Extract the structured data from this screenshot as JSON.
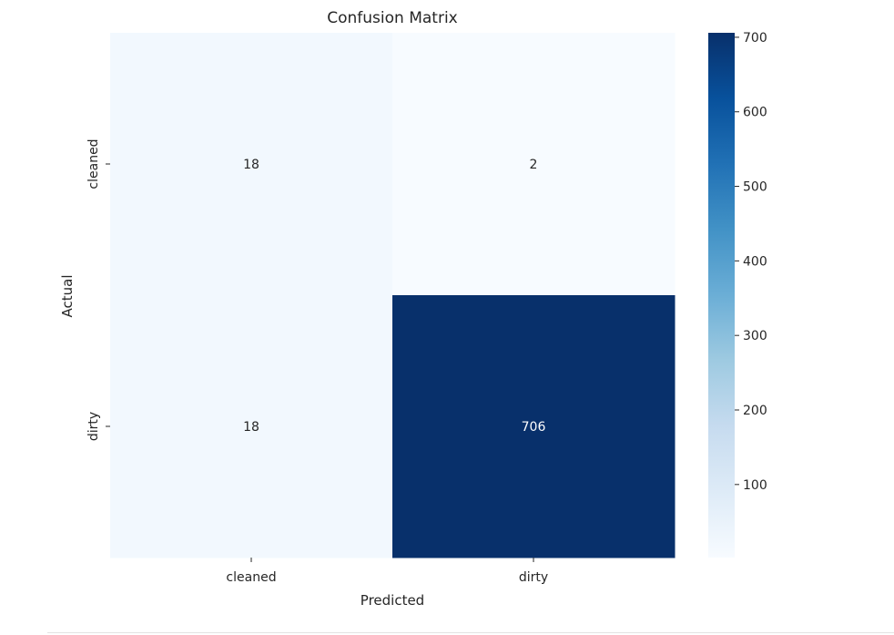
{
  "chart_data": {
    "type": "heatmap",
    "title": "Confusion Matrix",
    "xlabel": "Predicted",
    "ylabel": "Actual",
    "x_categories": [
      "cleaned",
      "dirty"
    ],
    "y_categories": [
      "cleaned",
      "dirty"
    ],
    "values": [
      [
        18,
        2
      ],
      [
        18,
        706
      ]
    ],
    "annotations": [
      [
        "18",
        "2"
      ],
      [
        "18",
        "706"
      ]
    ],
    "colormap": "Blues",
    "colormap_stops": [
      "#f7fbff",
      "#deebf7",
      "#c6dbef",
      "#9ecae1",
      "#6baed6",
      "#4292c6",
      "#2171b5",
      "#08519c",
      "#08306b"
    ],
    "value_range": [
      2,
      706
    ],
    "colorbar": {
      "ticks": [
        100,
        200,
        300,
        400,
        500,
        600,
        700
      ],
      "tick_labels": [
        "100",
        "200",
        "300",
        "400",
        "500",
        "600",
        "700"
      ]
    }
  }
}
